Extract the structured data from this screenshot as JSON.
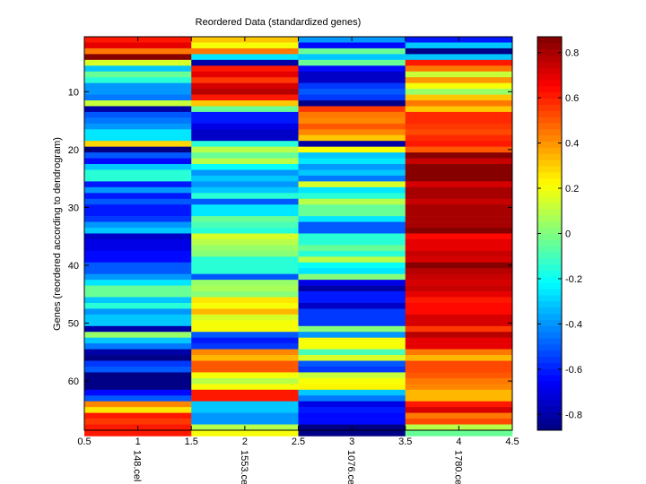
{
  "chart_data": {
    "type": "heatmap",
    "title": "Reordered Data (standardized genes)",
    "xlabel": "",
    "ylabel": "Genes (reordered according to dendrogram)",
    "xlim": [
      0.5,
      4.5
    ],
    "ylim": [
      0.5,
      68.5
    ],
    "x_ticks": [
      "0.5",
      "1",
      "1.5",
      "2",
      "2.5",
      "3",
      "3.5",
      "4",
      "4.5"
    ],
    "x_tick_values": [
      0.5,
      1,
      1.5,
      2,
      2.5,
      3,
      3.5,
      4,
      4.5
    ],
    "y_ticks": [
      "10",
      "20",
      "30",
      "40",
      "50",
      "60"
    ],
    "y_tick_values": [
      10,
      20,
      30,
      40,
      50,
      60
    ],
    "columns": [
      "148.cel",
      "1553.cel",
      "1076.cel",
      "1780.cel"
    ],
    "colorbar": {
      "colormap": "jet",
      "range": [
        -0.87,
        0.87
      ],
      "ticks": [
        "0.8",
        "0.6",
        "0.4",
        "0.2",
        "0",
        "-0.2",
        "-0.4",
        "-0.6",
        "-0.8"
      ],
      "tick_values": [
        0.8,
        0.6,
        0.4,
        0.2,
        0,
        -0.2,
        -0.4,
        -0.6,
        -0.8
      ]
    },
    "values": [
      [
        0.62,
        0.32,
        -0.4,
        -0.6
      ],
      [
        0.7,
        0.2,
        -0.65,
        -0.3
      ],
      [
        0.45,
        0.45,
        -0.05,
        -0.85
      ],
      [
        0.85,
        -0.25,
        -0.3,
        -0.3
      ],
      [
        0.15,
        -0.8,
        -0.05,
        0.62
      ],
      [
        -0.3,
        0.6,
        -0.65,
        0.45
      ],
      [
        -0.05,
        0.68,
        -0.75,
        0.12
      ],
      [
        -0.15,
        0.55,
        -0.75,
        0.4
      ],
      [
        -0.4,
        0.72,
        -0.55,
        0.2
      ],
      [
        -0.4,
        0.78,
        -0.5,
        0.05
      ],
      [
        -0.45,
        0.62,
        -0.55,
        0.3
      ],
      [
        0.12,
        0.3,
        -0.85,
        0.45
      ],
      [
        -0.8,
        -0.05,
        0.55,
        0.3
      ],
      [
        -0.5,
        -0.6,
        0.45,
        0.58
      ],
      [
        -0.45,
        -0.62,
        0.42,
        0.58
      ],
      [
        -0.4,
        -0.68,
        0.5,
        0.55
      ],
      [
        -0.25,
        -0.75,
        0.42,
        0.52
      ],
      [
        -0.25,
        -0.75,
        0.32,
        0.58
      ],
      [
        0.28,
        -0.15,
        -0.8,
        0.62
      ],
      [
        -0.85,
        0.1,
        0.2,
        0.5
      ],
      [
        -0.5,
        -0.05,
        -0.3,
        0.85
      ],
      [
        -0.65,
        0.1,
        -0.25,
        0.75
      ],
      [
        -0.3,
        -0.2,
        -0.4,
        0.85
      ],
      [
        -0.15,
        -0.4,
        -0.3,
        0.85
      ],
      [
        -0.15,
        -0.3,
        -0.45,
        0.85
      ],
      [
        -0.6,
        -0.4,
        0.15,
        0.72
      ],
      [
        -0.4,
        -0.3,
        -0.25,
        0.8
      ],
      [
        -0.6,
        -0.15,
        -0.15,
        0.8
      ],
      [
        -0.5,
        -0.5,
        0.1,
        0.75
      ],
      [
        -0.6,
        -0.25,
        -0.05,
        0.8
      ],
      [
        -0.6,
        -0.25,
        -0.05,
        0.8
      ],
      [
        -0.55,
        -0.05,
        -0.25,
        0.8
      ],
      [
        -0.4,
        -0.1,
        -0.5,
        0.8
      ],
      [
        -0.3,
        -0.15,
        -0.5,
        0.85
      ],
      [
        -0.75,
        0.15,
        -0.15,
        0.65
      ],
      [
        -0.7,
        0.1,
        -0.15,
        0.7
      ],
      [
        -0.7,
        0.05,
        -0.05,
        0.7
      ],
      [
        -0.65,
        0.0,
        -0.15,
        0.75
      ],
      [
        -0.65,
        -0.15,
        0.1,
        0.72
      ],
      [
        -0.5,
        -0.15,
        -0.2,
        0.85
      ],
      [
        -0.5,
        -0.15,
        -0.25,
        0.78
      ],
      [
        -0.4,
        -0.5,
        0.0,
        0.75
      ],
      [
        -0.25,
        0.05,
        -0.7,
        0.72
      ],
      [
        -0.05,
        0.08,
        -0.8,
        0.75
      ],
      [
        -0.05,
        0.0,
        -0.62,
        0.7
      ],
      [
        -0.3,
        0.25,
        -0.62,
        0.62
      ],
      [
        -0.15,
        0.2,
        -0.75,
        0.65
      ],
      [
        -0.4,
        0.35,
        -0.55,
        0.65
      ],
      [
        -0.3,
        0.15,
        -0.55,
        0.72
      ],
      [
        -0.3,
        0.2,
        -0.55,
        0.72
      ],
      [
        -0.8,
        0.2,
        0.0,
        0.55
      ],
      [
        0.05,
        -0.5,
        -0.4,
        0.78
      ],
      [
        -0.3,
        -0.6,
        0.2,
        0.7
      ],
      [
        -0.45,
        -0.55,
        0.2,
        0.7
      ],
      [
        -0.8,
        0.42,
        -0.1,
        0.45
      ],
      [
        -0.85,
        0.35,
        0.15,
        0.35
      ],
      [
        -0.55,
        0.5,
        -0.5,
        0.52
      ],
      [
        -0.5,
        0.5,
        -0.55,
        0.52
      ],
      [
        -0.87,
        0.2,
        0.12,
        0.5
      ],
      [
        -0.87,
        0.1,
        0.2,
        0.45
      ],
      [
        -0.87,
        0.2,
        0.22,
        0.42
      ],
      [
        -0.65,
        0.62,
        -0.3,
        0.35
      ],
      [
        -0.5,
        0.62,
        -0.45,
        0.35
      ],
      [
        0.42,
        -0.3,
        -0.7,
        0.62
      ],
      [
        0.25,
        -0.3,
        -0.62,
        0.72
      ],
      [
        0.62,
        -0.4,
        -0.65,
        0.45
      ],
      [
        0.55,
        -0.4,
        -0.65,
        0.52
      ],
      [
        0.6,
        0.1,
        -0.85,
        0.1
      ],
      [
        0.6,
        0.2,
        -0.85,
        -0.05
      ]
    ]
  }
}
